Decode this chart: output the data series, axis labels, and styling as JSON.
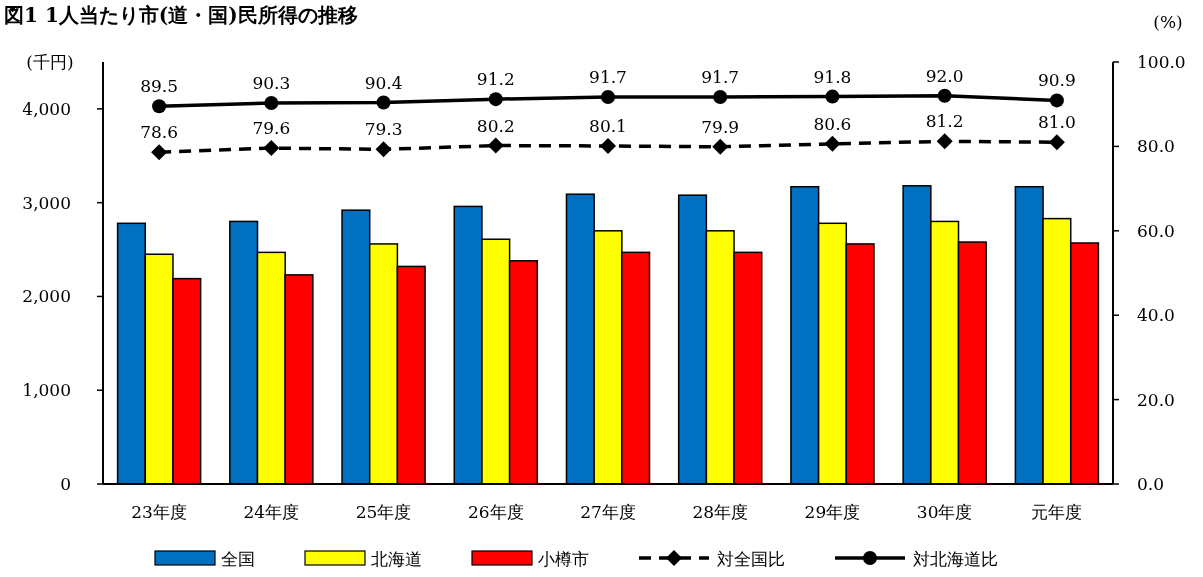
{
  "chart_data": {
    "type": "bar",
    "title": "図1 1人当たり市(道・国)民所得の推移",
    "ylabel": "(千円)",
    "y2label": "(%)",
    "categories": [
      "23年度",
      "24年度",
      "25年度",
      "26年度",
      "27年度",
      "28年度",
      "29年度",
      "30年度",
      "元年度"
    ],
    "series": [
      {
        "name": "全国",
        "color": "#0070c0",
        "values": [
          2780,
          2800,
          2920,
          2960,
          3090,
          3080,
          3170,
          3180,
          3170
        ]
      },
      {
        "name": "北海道",
        "color": "#ffff00",
        "values": [
          2450,
          2470,
          2560,
          2610,
          2700,
          2700,
          2780,
          2800,
          2830
        ]
      },
      {
        "name": "小樽市",
        "color": "#ff0000",
        "values": [
          2190,
          2230,
          2320,
          2380,
          2470,
          2470,
          2560,
          2580,
          2570
        ]
      },
      {
        "name": "対全国比",
        "type": "line",
        "axis": "y2",
        "color": "#000000",
        "marker": "diamond",
        "line_style": "dashed",
        "values": [
          78.6,
          79.6,
          79.3,
          80.2,
          80.1,
          79.9,
          80.6,
          81.2,
          81.0
        ],
        "value_labels": [
          "78.6",
          "79.6",
          "79.3",
          "80.2",
          "80.1",
          "79.9",
          "80.6",
          "81.2",
          "81.0"
        ]
      },
      {
        "name": "対北海道比",
        "type": "line",
        "axis": "y2",
        "color": "#000000",
        "marker": "circle",
        "line_style": "solid",
        "values": [
          89.5,
          90.3,
          90.4,
          91.2,
          91.7,
          91.7,
          91.8,
          92.0,
          90.9
        ],
        "value_labels": [
          "89.5",
          "90.3",
          "90.4",
          "91.2",
          "91.7",
          "91.7",
          "91.8",
          "92.0",
          "90.9"
        ]
      }
    ],
    "ylim": [
      0,
      4500
    ],
    "yticks": [
      {
        "value": 0,
        "label": "0"
      },
      {
        "value": 1000,
        "label": "1,000"
      },
      {
        "value": 2000,
        "label": "2,000"
      },
      {
        "value": 3000,
        "label": "3,000"
      },
      {
        "value": 4000,
        "label": "4,000"
      }
    ],
    "y2lim": [
      0,
      100
    ],
    "y2ticks": [
      {
        "value": 0,
        "label": "0.0"
      },
      {
        "value": 20,
        "label": "20.0"
      },
      {
        "value": 40,
        "label": "40.0"
      },
      {
        "value": 60,
        "label": "60.0"
      },
      {
        "value": 80,
        "label": "80.0"
      },
      {
        "value": 100,
        "label": "100.0"
      }
    ],
    "legend": "bottom"
  }
}
